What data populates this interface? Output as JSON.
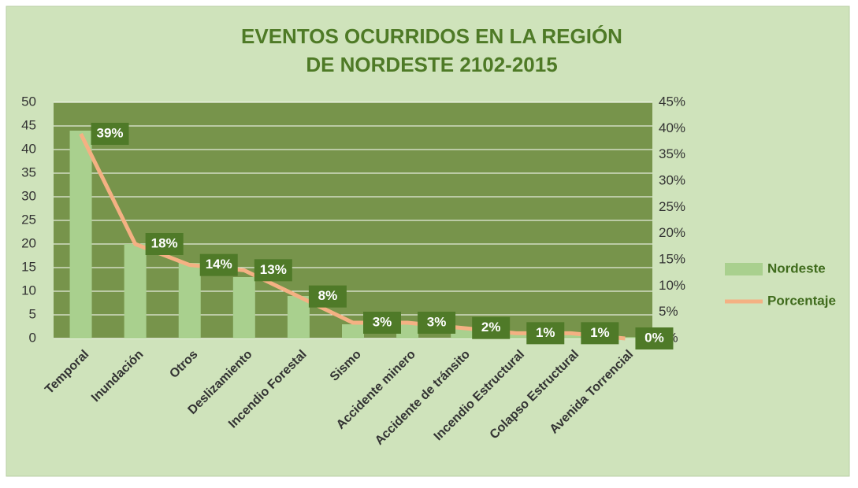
{
  "chart_data": {
    "type": "combo",
    "title": [
      "EVENTOS OCURRIDOS EN LA REGIÓN",
      "DE NORDESTE 2102-2015"
    ],
    "categories": [
      "Temporal",
      "Inundación",
      "Otros",
      "Deslizamiento",
      "Incendio Forestal",
      "Sismo",
      "Accidente minero",
      "Accidente de tránsito",
      "Incendio Estructural",
      "Colapso Estructural",
      "Avenida Torrencial"
    ],
    "series": [
      {
        "name": "Nordeste",
        "color": "#a9d08e",
        "kind": "bar",
        "values": [
          44,
          20,
          16,
          13,
          9,
          3,
          3,
          2,
          1,
          1,
          0.3
        ]
      },
      {
        "name": "Porcentaje",
        "color": "#f4b183",
        "kind": "line",
        "axis": "y2",
        "values": [
          39,
          18,
          14,
          13,
          8,
          3,
          3,
          2,
          1,
          1,
          0
        ],
        "value_labels": [
          "39%",
          "18%",
          "14%",
          "13%",
          "8%",
          "3%",
          "3%",
          "2%",
          "1%",
          "1%",
          "0%"
        ]
      }
    ],
    "ylim": [
      0,
      50
    ],
    "yticks": [
      0,
      5,
      10,
      15,
      20,
      25,
      30,
      35,
      40,
      45,
      50
    ],
    "y2lim": [
      0,
      45
    ],
    "y2ticks": [
      {
        "value": 0,
        "label": "0%"
      },
      {
        "value": 5,
        "label": "5%"
      },
      {
        "value": 10,
        "label": "10%"
      },
      {
        "value": 15,
        "label": "15%"
      },
      {
        "value": 20,
        "label": "20%"
      },
      {
        "value": 25,
        "label": "25%"
      },
      {
        "value": 30,
        "label": "30%"
      },
      {
        "value": 35,
        "label": "35%"
      },
      {
        "value": 40,
        "label": "40%"
      },
      {
        "value": 45,
        "label": "45%"
      }
    ],
    "grid": true,
    "legend": "right"
  }
}
